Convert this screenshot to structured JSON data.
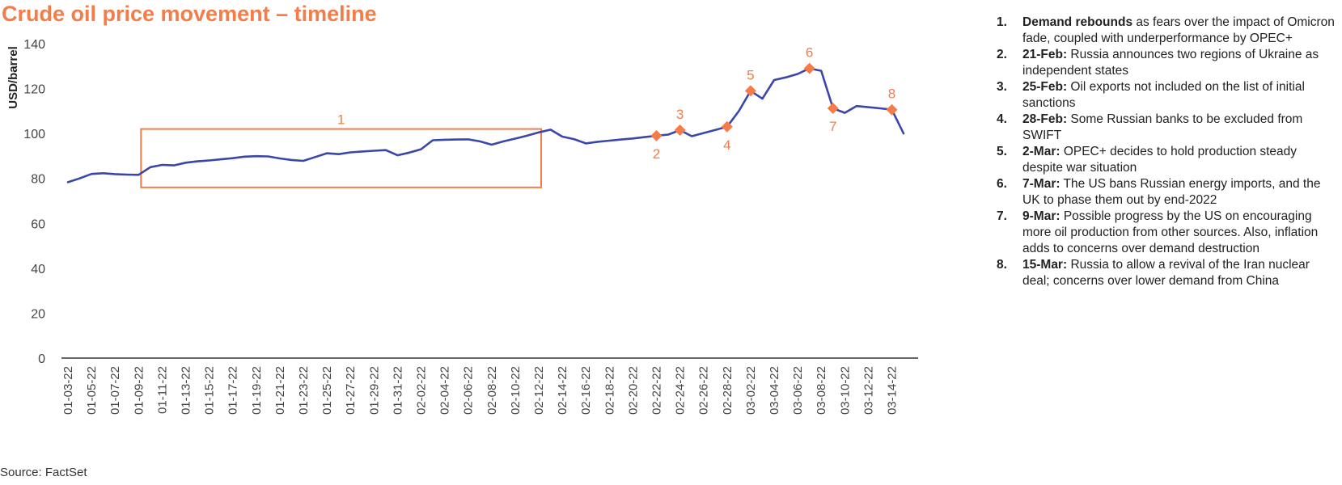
{
  "title": "Crude oil price movement – timeline",
  "source": "Source: FactSet",
  "colors": {
    "line": "#3b47a8",
    "accent": "#f47c48",
    "axis": "#333333",
    "text": "#444444"
  },
  "chart_data": {
    "type": "line",
    "ylabel": "USD/barrel",
    "ylim": [
      0,
      140
    ],
    "yticks": [
      0,
      20,
      40,
      60,
      80,
      100,
      120,
      140
    ],
    "grid": false,
    "tick_labels": [
      "01-03-22",
      "01-05-22",
      "01-07-22",
      "01-09-22",
      "01-11-22",
      "01-13-22",
      "01-15-22",
      "01-17-22",
      "01-19-22",
      "01-21-22",
      "01-23-22",
      "01-25-22",
      "01-27-22",
      "01-29-22",
      "01-31-22",
      "02-02-22",
      "02-04-22",
      "02-06-22",
      "02-08-22",
      "02-10-22",
      "02-12-22",
      "02-14-22",
      "02-16-22",
      "02-18-22",
      "02-20-22",
      "02-22-22",
      "02-24-22",
      "02-26-22",
      "02-28-22",
      "03-02-22",
      "03-04-22",
      "03-06-22",
      "03-08-22",
      "03-10-22",
      "03-12-22",
      "03-14-22"
    ],
    "x_start": "01-03-22",
    "x_end": "03-15-22",
    "series": [
      {
        "values": [
          [
            "01-03-22",
            78.3
          ],
          [
            "01-04-22",
            80.0
          ],
          [
            "01-05-22",
            82.0
          ],
          [
            "01-06-22",
            82.3
          ],
          [
            "01-07-22",
            81.9
          ],
          [
            "01-08-22",
            81.7
          ],
          [
            "01-09-22",
            81.6
          ],
          [
            "01-10-22",
            85.0
          ],
          [
            "01-11-22",
            86.0
          ],
          [
            "01-12-22",
            85.8
          ],
          [
            "01-13-22",
            87.0
          ],
          [
            "01-14-22",
            87.6
          ],
          [
            "01-15-22",
            88.0
          ],
          [
            "01-16-22",
            88.5
          ],
          [
            "01-17-22",
            89.0
          ],
          [
            "01-18-22",
            89.7
          ],
          [
            "01-19-22",
            89.9
          ],
          [
            "01-20-22",
            89.8
          ],
          [
            "01-21-22",
            88.9
          ],
          [
            "01-22-22",
            88.2
          ],
          [
            "01-23-22",
            87.8
          ],
          [
            "01-24-22",
            89.5
          ],
          [
            "01-25-22",
            91.2
          ],
          [
            "01-26-22",
            90.8
          ],
          [
            "01-27-22",
            91.6
          ],
          [
            "01-28-22",
            92.0
          ],
          [
            "01-29-22",
            92.3
          ],
          [
            "01-30-22",
            92.6
          ],
          [
            "01-31-22",
            90.3
          ],
          [
            "02-01-22",
            91.5
          ],
          [
            "02-02-22",
            93.0
          ],
          [
            "02-03-22",
            97.0
          ],
          [
            "02-04-22",
            97.2
          ],
          [
            "02-05-22",
            97.3
          ],
          [
            "02-06-22",
            97.4
          ],
          [
            "02-07-22",
            96.5
          ],
          [
            "02-08-22",
            95.0
          ],
          [
            "02-09-22",
            96.5
          ],
          [
            "02-10-22",
            97.7
          ],
          [
            "02-11-22",
            99.0
          ],
          [
            "02-12-22",
            100.5
          ],
          [
            "02-13-22",
            101.7
          ],
          [
            "02-14-22",
            98.6
          ],
          [
            "02-15-22",
            97.5
          ],
          [
            "02-16-22",
            95.6
          ],
          [
            "02-17-22",
            96.3
          ],
          [
            "02-18-22",
            96.8
          ],
          [
            "02-19-22",
            97.3
          ],
          [
            "02-20-22",
            97.8
          ],
          [
            "02-21-22",
            98.4
          ],
          [
            "02-22-22",
            99.0
          ],
          [
            "02-23-22",
            99.5
          ],
          [
            "02-24-22",
            101.5
          ],
          [
            "02-25-22",
            98.8
          ],
          [
            "02-26-22",
            100.2
          ],
          [
            "02-27-22",
            101.6
          ],
          [
            "02-28-22",
            103.0
          ],
          [
            "03-01-22",
            110.0
          ],
          [
            "03-02-22",
            119.0
          ],
          [
            "03-03-22",
            115.5
          ],
          [
            "03-04-22",
            123.8
          ],
          [
            "03-05-22",
            125.0
          ],
          [
            "03-06-22",
            126.5
          ],
          [
            "03-07-22",
            129.0
          ],
          [
            "03-08-22",
            127.9
          ],
          [
            "03-09-22",
            111.2
          ],
          [
            "03-10-22",
            109.2
          ],
          [
            "03-11-22",
            112.2
          ],
          [
            "03-12-22",
            111.7
          ],
          [
            "03-13-22",
            111.2
          ],
          [
            "03-14-22",
            110.6
          ],
          [
            "03-15-22",
            100.0
          ]
        ]
      }
    ],
    "event_markers": [
      {
        "label": "2",
        "x": "02-22-22",
        "y": 99.0,
        "label_pos": "below"
      },
      {
        "label": "3",
        "x": "02-24-22",
        "y": 101.5,
        "label_pos": "above"
      },
      {
        "label": "4",
        "x": "02-28-22",
        "y": 103.0,
        "label_pos": "below"
      },
      {
        "label": "5",
        "x": "03-02-22",
        "y": 119.0,
        "label_pos": "above"
      },
      {
        "label": "6",
        "x": "03-07-22",
        "y": 129.0,
        "label_pos": "above"
      },
      {
        "label": "7",
        "x": "03-09-22",
        "y": 111.2,
        "label_pos": "below"
      },
      {
        "label": "8",
        "x": "03-14-22",
        "y": 110.6,
        "label_pos": "above"
      }
    ],
    "annotation_box": {
      "label": "1",
      "x_from": "01-09-22",
      "x_to": "02-12-22",
      "y_from": 76,
      "y_to": 102
    }
  },
  "notes": [
    {
      "num": "1.",
      "head": "Demand rebounds",
      "text": " as fears over the impact of Omicron fade, coupled with underperformance by OPEC+"
    },
    {
      "num": "2.",
      "head": "21-Feb:",
      "text": " Russia announces two regions of Ukraine as independent states"
    },
    {
      "num": "3.",
      "head": "25-Feb:",
      "text": " Oil exports not included on the list of initial sanctions"
    },
    {
      "num": "4.",
      "head": "28-Feb:",
      "text": " Some Russian banks to be excluded from SWIFT"
    },
    {
      "num": "5.",
      "head": "2-Mar:",
      "text": " OPEC+ decides to hold production steady despite war situation"
    },
    {
      "num": "6.",
      "head": "7-Mar:",
      "text": " The US bans Russian energy imports, and the UK to phase them out by end-2022"
    },
    {
      "num": "7.",
      "head": "9-Mar:",
      "text": " Possible progress by the US on encouraging more oil production from other sources. Also, inflation adds to concerns over demand destruction"
    },
    {
      "num": "8.",
      "head": "15-Mar:",
      "text": " Russia to allow a revival of the Iran nuclear deal; concerns over lower demand from China"
    }
  ]
}
